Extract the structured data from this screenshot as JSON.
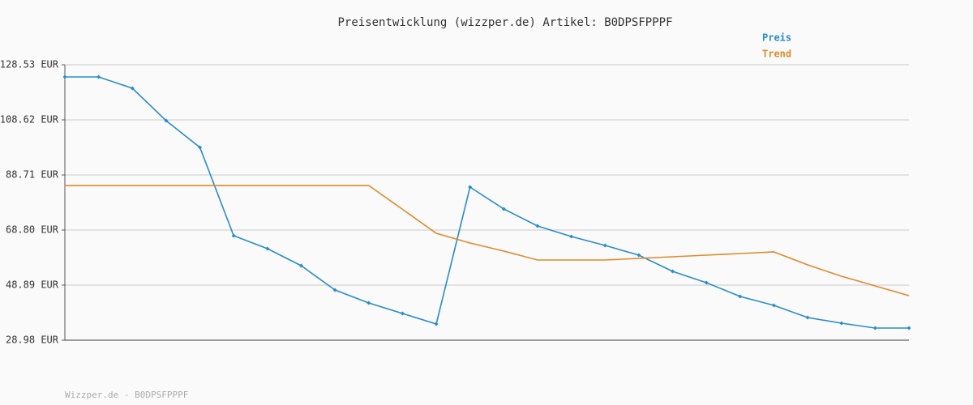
{
  "chart_data": {
    "type": "line",
    "title": "Preisentwicklung (wizzper.de) Artikel: B0DPSFPPPF",
    "footer": "Wizzper.de - B0DPSFPPPF",
    "categories": [
      null,
      null,
      null,
      null,
      null,
      null,
      null,
      null,
      null,
      null,
      null,
      null,
      null,
      null,
      null,
      null,
      null,
      null,
      null,
      null,
      null,
      null,
      null,
      null,
      null,
      null
    ],
    "series": [
      {
        "name": "Preis",
        "color": "#2a8ccc",
        "values": [
          124.14,
          124.14,
          120.04,
          108.33,
          98.67,
          66.75,
          62.07,
          55.92,
          47.13,
          42.45,
          38.64,
          34.84,
          84.32,
          76.41,
          70.26,
          66.46,
          63.24,
          59.72,
          53.86,
          49.77,
          44.79,
          41.57,
          37.18,
          35.13,
          33.37,
          33.37
        ]
      },
      {
        "name": "Trend",
        "color": "#e08a2a",
        "values": [
          84.9,
          84.9,
          84.9,
          84.9,
          84.9,
          84.9,
          84.9,
          84.9,
          84.9,
          84.9,
          76.3,
          67.63,
          64.12,
          61.19,
          57.97,
          57.97,
          57.97,
          58.55,
          59.14,
          59.72,
          60.31,
          60.9,
          56.21,
          52.11,
          48.6,
          45.09
        ]
      }
    ],
    "ylim": [
      28.98,
      128.53
    ],
    "yticks": [
      {
        "value": 28.98,
        "label": "28.98 EUR"
      },
      {
        "value": 48.89,
        "label": "48.89 EUR"
      },
      {
        "value": 68.8,
        "label": "68.80 EUR"
      },
      {
        "value": 88.71,
        "label": "88.71 EUR"
      },
      {
        "value": 108.62,
        "label": "108.62 EUR"
      },
      {
        "value": 128.53,
        "label": "128.53 EUR"
      }
    ],
    "grid": true,
    "legend": "top-right"
  }
}
